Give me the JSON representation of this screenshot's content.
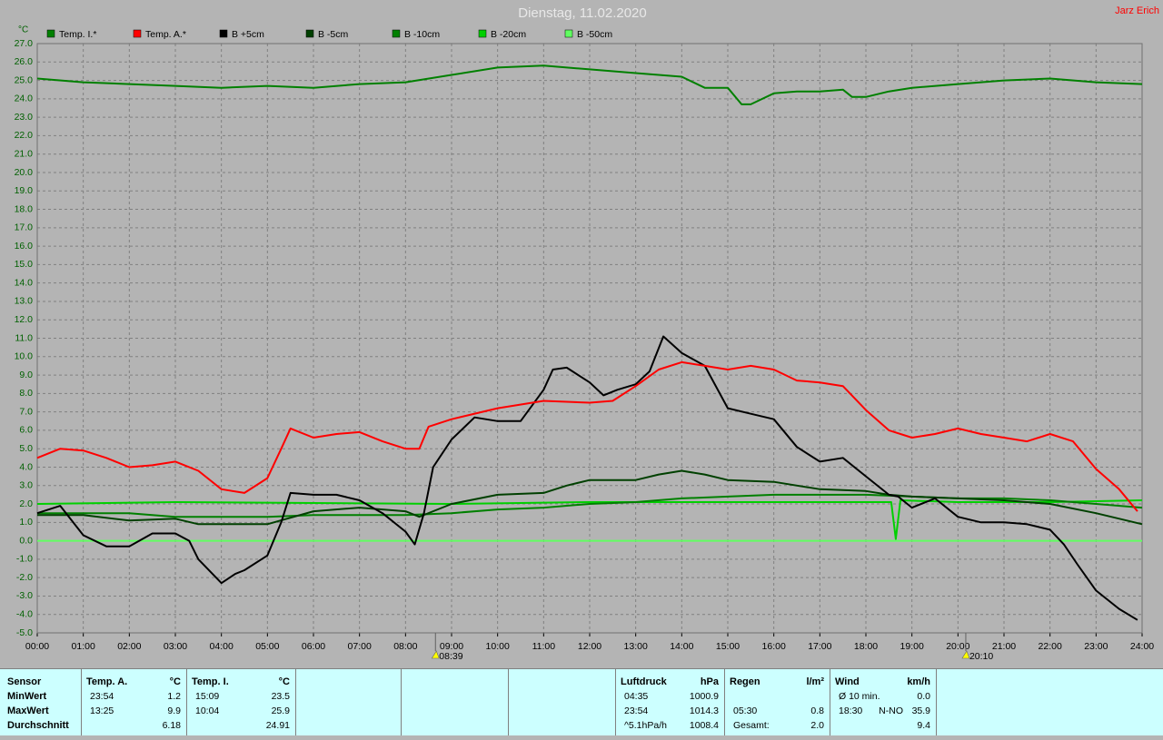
{
  "chart_data": {
    "type": "line",
    "title": "Dienstag, 11.02.2020",
    "author": "Jarz Erich",
    "y_unit": "°C",
    "xlim": [
      0,
      24
    ],
    "ylim": [
      -5,
      27
    ],
    "grid": true,
    "xticks": [
      {
        "value": 0,
        "label": "00:00"
      },
      {
        "value": 1,
        "label": "01:00"
      },
      {
        "value": 2,
        "label": "02:00"
      },
      {
        "value": 3,
        "label": "03:00"
      },
      {
        "value": 4,
        "label": "04:00"
      },
      {
        "value": 5,
        "label": "05:00"
      },
      {
        "value": 6,
        "label": "06:00"
      },
      {
        "value": 7,
        "label": "07:00"
      },
      {
        "value": 8,
        "label": "08:00"
      },
      {
        "value": 9,
        "label": "09:00"
      },
      {
        "value": 10,
        "label": "10:00"
      },
      {
        "value": 11,
        "label": "11:00"
      },
      {
        "value": 12,
        "label": "12:00"
      },
      {
        "value": 13,
        "label": "13:00"
      },
      {
        "value": 14,
        "label": "14:00"
      },
      {
        "value": 15,
        "label": "15:00"
      },
      {
        "value": 16,
        "label": "16:00"
      },
      {
        "value": 17,
        "label": "17:00"
      },
      {
        "value": 18,
        "label": "18:00"
      },
      {
        "value": 19,
        "label": "19:00"
      },
      {
        "value": 20,
        "label": "20:00"
      },
      {
        "value": 21,
        "label": "21:00"
      },
      {
        "value": 22,
        "label": "22:00"
      },
      {
        "value": 23,
        "label": "23:00"
      },
      {
        "value": 24,
        "label": "24:00"
      }
    ],
    "yticks": [
      {
        "value": -5,
        "label": "-5.0"
      },
      {
        "value": -4,
        "label": "-4.0"
      },
      {
        "value": -3,
        "label": "-3.0"
      },
      {
        "value": -2,
        "label": "-2.0"
      },
      {
        "value": -1,
        "label": "-1.0"
      },
      {
        "value": 0,
        "label": "0.0"
      },
      {
        "value": 1,
        "label": "1.0"
      },
      {
        "value": 2,
        "label": "2.0"
      },
      {
        "value": 3,
        "label": "3.0"
      },
      {
        "value": 4,
        "label": "4.0"
      },
      {
        "value": 5,
        "label": "5.0"
      },
      {
        "value": 6,
        "label": "6.0"
      },
      {
        "value": 7,
        "label": "7.0"
      },
      {
        "value": 8,
        "label": "8.0"
      },
      {
        "value": 9,
        "label": "9.0"
      },
      {
        "value": 10,
        "label": "10.0"
      },
      {
        "value": 11,
        "label": "11.0"
      },
      {
        "value": 12,
        "label": "12.0"
      },
      {
        "value": 13,
        "label": "13.0"
      },
      {
        "value": 14,
        "label": "14.0"
      },
      {
        "value": 15,
        "label": "15.0"
      },
      {
        "value": 16,
        "label": "16.0"
      },
      {
        "value": 17,
        "label": "17.0"
      },
      {
        "value": 18,
        "label": "18.0"
      },
      {
        "value": 19,
        "label": "19.0"
      },
      {
        "value": 20,
        "label": "20.0"
      },
      {
        "value": 21,
        "label": "21.0"
      },
      {
        "value": 22,
        "label": "22.0"
      },
      {
        "value": 23,
        "label": "23.0"
      },
      {
        "value": 24,
        "label": "24.0"
      },
      {
        "value": 25,
        "label": "25.0"
      },
      {
        "value": 26,
        "label": "26.0"
      },
      {
        "value": 27,
        "label": "27.0"
      }
    ],
    "sunrise": {
      "x": 8.65,
      "label": "08:39"
    },
    "sunset": {
      "x": 20.17,
      "label": "20:10"
    },
    "series": [
      {
        "name": "Temp. I.*",
        "color": "#008000",
        "x": [
          0,
          1,
          2,
          3,
          4,
          5,
          6,
          7,
          8,
          9,
          10,
          11,
          12,
          13,
          14,
          14.5,
          15,
          15.3,
          15.5,
          16,
          16.5,
          17,
          17.5,
          17.7,
          18,
          18.5,
          19,
          20,
          21,
          22,
          23,
          24
        ],
        "values": [
          25.1,
          24.9,
          24.8,
          24.7,
          24.6,
          24.7,
          24.6,
          24.8,
          24.9,
          25.3,
          25.7,
          25.8,
          25.6,
          25.4,
          25.2,
          24.6,
          24.6,
          23.7,
          23.7,
          24.3,
          24.4,
          24.4,
          24.5,
          24.1,
          24.1,
          24.4,
          24.6,
          24.8,
          25.0,
          25.1,
          24.9,
          24.8
        ]
      },
      {
        "name": "Temp. A.*",
        "color": "#ff0000",
        "x": [
          0,
          0.5,
          1,
          1.5,
          2,
          2.5,
          3,
          3.5,
          4,
          4.5,
          5,
          5.3,
          5.5,
          6,
          6.5,
          7,
          7.5,
          8,
          8.3,
          8.5,
          9,
          10,
          11,
          12,
          12.5,
          13,
          13.5,
          14,
          14.5,
          15,
          15.5,
          16,
          16.5,
          17,
          17.5,
          18,
          18.5,
          19,
          19.5,
          20,
          20.5,
          21,
          21.5,
          22,
          22.5,
          23,
          23.5,
          23.9
        ],
        "values": [
          4.5,
          5.0,
          4.9,
          4.5,
          4.0,
          4.1,
          4.3,
          3.8,
          2.8,
          2.6,
          3.4,
          5.0,
          6.1,
          5.6,
          5.8,
          5.9,
          5.4,
          5.0,
          5.0,
          6.2,
          6.6,
          7.2,
          7.6,
          7.5,
          7.6,
          8.4,
          9.3,
          9.7,
          9.5,
          9.3,
          9.5,
          9.3,
          8.7,
          8.6,
          8.4,
          7.1,
          6.0,
          5.6,
          5.8,
          6.1,
          5.8,
          5.6,
          5.4,
          5.8,
          5.4,
          3.9,
          2.8,
          1.6
        ]
      },
      {
        "name": "B +5cm",
        "color": "#000000",
        "x": [
          0,
          0.5,
          1,
          1.5,
          2,
          2.5,
          3,
          3.3,
          3.5,
          4,
          4.3,
          4.5,
          5,
          5.3,
          5.5,
          6,
          6.5,
          7,
          7.5,
          8,
          8.2,
          8.4,
          8.6,
          9,
          9.5,
          10,
          10.5,
          11,
          11.2,
          11.5,
          12,
          12.3,
          12.6,
          13,
          13.3,
          13.6,
          14,
          14.5,
          15,
          15.5,
          16,
          16.5,
          17,
          17.5,
          18,
          18.5,
          18.7,
          19,
          19.5,
          20,
          20.5,
          21,
          21.5,
          22,
          22.3,
          22.6,
          23,
          23.5,
          23.9
        ],
        "values": [
          1.5,
          1.9,
          0.3,
          -0.3,
          -0.3,
          0.4,
          0.4,
          0.0,
          -1.0,
          -2.3,
          -1.8,
          -1.6,
          -0.8,
          1.0,
          2.6,
          2.5,
          2.5,
          2.2,
          1.5,
          0.5,
          -0.2,
          1.5,
          4.0,
          5.5,
          6.7,
          6.5,
          6.5,
          8.2,
          9.3,
          9.4,
          8.6,
          7.9,
          8.2,
          8.5,
          9.2,
          11.1,
          10.2,
          9.5,
          7.2,
          6.9,
          6.6,
          5.1,
          4.3,
          4.5,
          3.5,
          2.5,
          2.4,
          1.8,
          2.3,
          1.3,
          1.0,
          1.0,
          0.9,
          0.6,
          -0.2,
          -1.3,
          -2.7,
          -3.7,
          -4.3
        ]
      },
      {
        "name": "B -5cm",
        "color": "#004000",
        "x": [
          0,
          1,
          2,
          3,
          3.5,
          4,
          5,
          6,
          7,
          8,
          8.3,
          9,
          10,
          11,
          11.5,
          12,
          13,
          13.5,
          14,
          14.5,
          15,
          16,
          17,
          18,
          18.5,
          19,
          20,
          21,
          22,
          23,
          24
        ],
        "values": [
          1.4,
          1.4,
          1.1,
          1.2,
          0.9,
          0.9,
          0.9,
          1.6,
          1.8,
          1.6,
          1.3,
          2.0,
          2.5,
          2.6,
          3.0,
          3.3,
          3.3,
          3.6,
          3.8,
          3.6,
          3.3,
          3.2,
          2.8,
          2.7,
          2.5,
          2.4,
          2.3,
          2.2,
          2.0,
          1.5,
          0.9
        ]
      },
      {
        "name": "B -10cm",
        "color": "#008000",
        "x": [
          0,
          1,
          2,
          3,
          4,
          5,
          6,
          7,
          8,
          9,
          10,
          11,
          12,
          13,
          14,
          15,
          16,
          17,
          18,
          19,
          20,
          21,
          22,
          23,
          24
        ],
        "values": [
          1.5,
          1.5,
          1.5,
          1.3,
          1.3,
          1.3,
          1.4,
          1.4,
          1.4,
          1.5,
          1.7,
          1.8,
          2.0,
          2.1,
          2.3,
          2.4,
          2.5,
          2.5,
          2.5,
          2.4,
          2.3,
          2.3,
          2.2,
          2.0,
          1.8
        ]
      },
      {
        "name": "B -20cm",
        "color": "#00d000",
        "x": [
          0,
          3,
          9,
          12,
          15,
          18,
          18.55,
          18.65,
          18.75,
          20,
          22,
          24
        ],
        "values": [
          2.0,
          2.1,
          2.0,
          2.1,
          2.1,
          2.1,
          2.1,
          0.1,
          2.2,
          2.1,
          2.1,
          2.2
        ]
      },
      {
        "name": "B -50cm",
        "color": "#60ff60",
        "x": [
          0,
          24
        ],
        "values": [
          0,
          0
        ]
      }
    ]
  },
  "stats": {
    "labels": [
      "Sensor",
      "MinWert",
      "MaxWert",
      "Durchschnitt"
    ],
    "groups": [
      {
        "header": [
          "Temp. A.",
          "°C"
        ],
        "rows": [
          [
            "23:54",
            "1.2"
          ],
          [
            "13:25",
            "9.9"
          ],
          [
            "6.18"
          ]
        ]
      },
      {
        "header": [
          "Temp. I.",
          "°C"
        ],
        "rows": [
          [
            "15:09",
            "23.5"
          ],
          [
            "10:04",
            "25.9"
          ],
          [
            "24.91"
          ]
        ]
      },
      {
        "header": [
          "Luftdruck",
          "hPa"
        ],
        "rows": [
          [
            "04:35",
            "1000.9"
          ],
          [
            "23:54",
            "1014.3"
          ],
          [
            "^5.1hPa/h",
            "1008.4"
          ]
        ]
      },
      {
        "header": [
          "Regen",
          "l/m²"
        ],
        "rows": [
          [],
          [
            "05:30",
            "0.8"
          ],
          [
            "Gesamt:",
            "2.0"
          ]
        ]
      },
      {
        "header": [
          "Wind",
          "km/h"
        ],
        "rows": [
          [
            "Ø 10 min.",
            "0.0"
          ],
          [
            "18:30",
            "N-NO",
            "35.9"
          ],
          [
            "9.4"
          ]
        ]
      }
    ]
  }
}
